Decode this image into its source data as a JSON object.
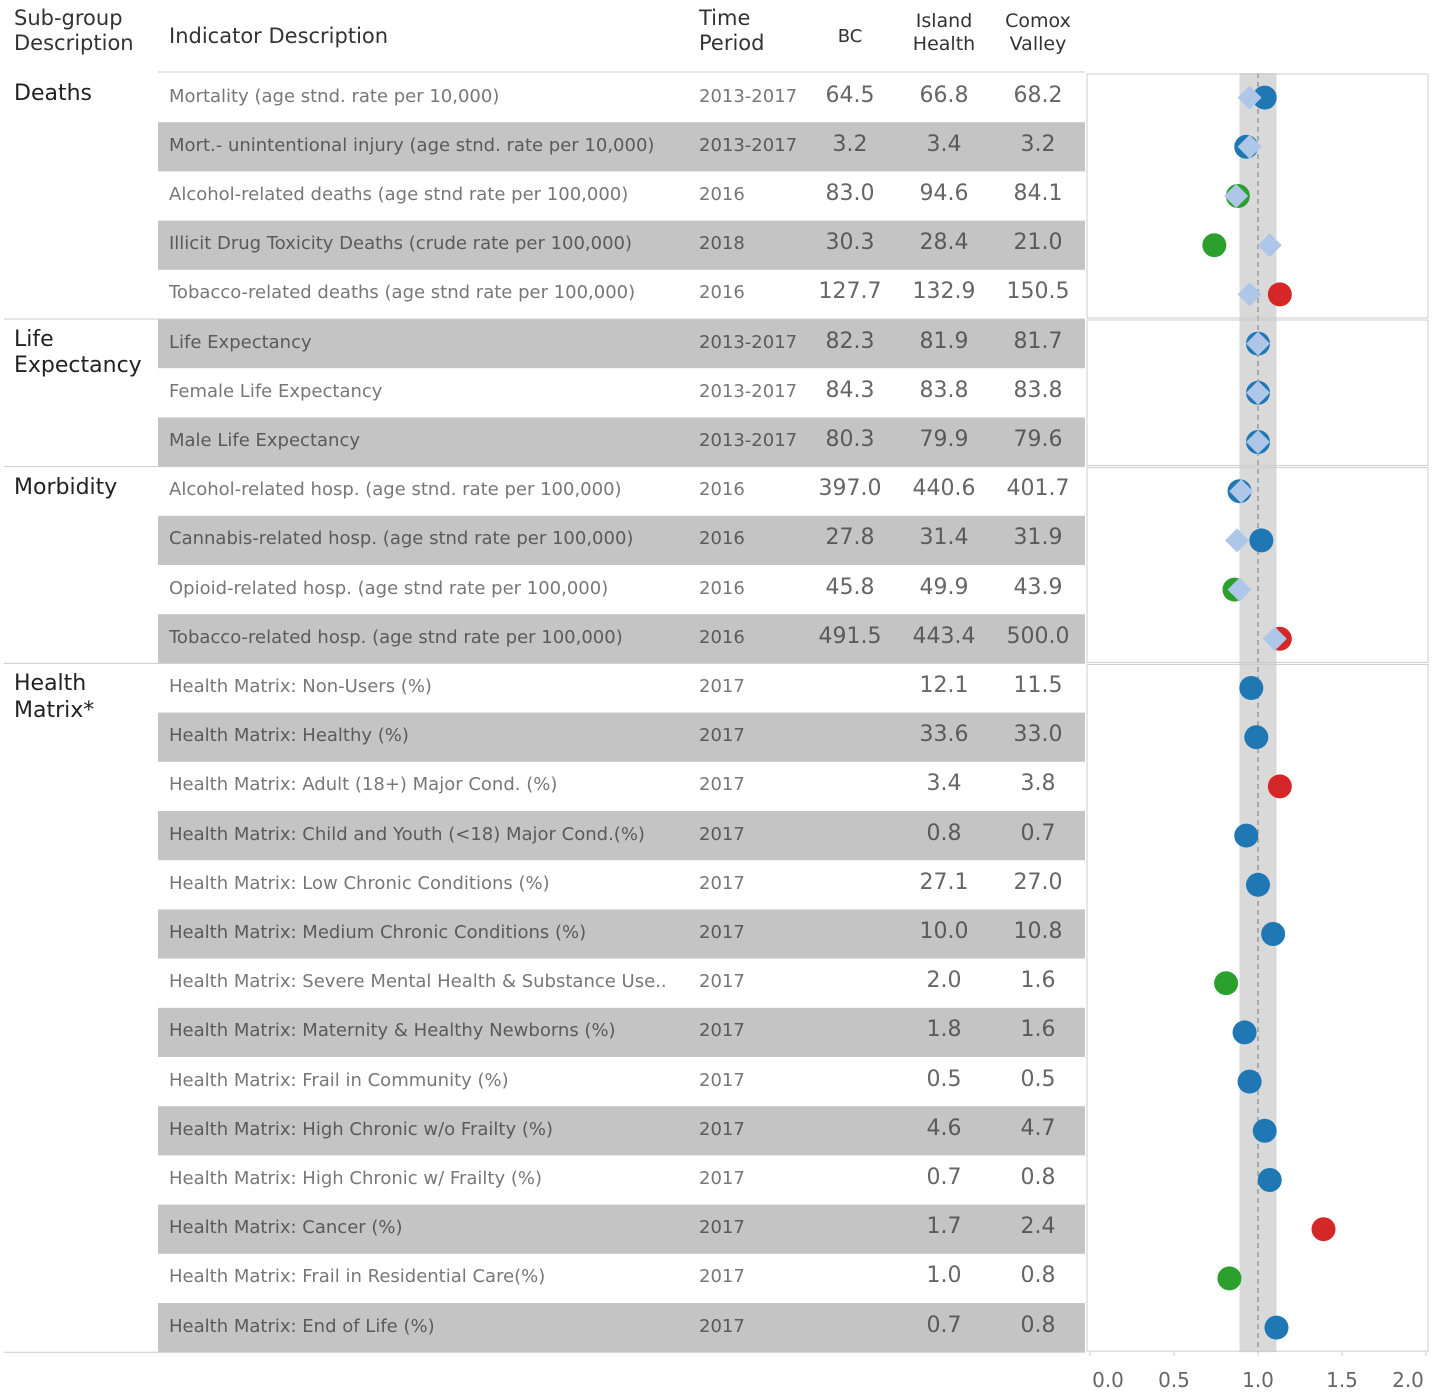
{
  "header": {
    "subgroup": "Sub-group Description",
    "indicator": "Indicator Description",
    "time": "Time Period",
    "bc": "BC",
    "island": "Island Health",
    "comox": "Comox Valley"
  },
  "axis": {
    "xlim": [
      0,
      2
    ],
    "xticks": [
      {
        "value": 0,
        "label": "0.0"
      },
      {
        "value": 0.5,
        "label": "0.5"
      },
      {
        "value": 1,
        "label": "1.0"
      },
      {
        "value": 1.5,
        "label": "1.5"
      },
      {
        "value": 2,
        "label": "2.0"
      }
    ],
    "reference": 1,
    "band": [
      0.89,
      1.11
    ]
  },
  "colors": {
    "blue": "#1f77b4",
    "green": "#2ca02c",
    "red": "#d62728",
    "diamond": "#aec7e8"
  },
  "groups": [
    {
      "name": "Deaths",
      "rows": [
        {
          "indicator": "Mortality (age stnd. rate per 10,000)",
          "period": "2013-2017",
          "bc": "64.5",
          "island": "66.8",
          "comox": "68.2",
          "ratio": 1.04,
          "color": "blue",
          "diamond": 0.95
        },
        {
          "indicator": "Mort.- unintentional injury (age stnd. rate per 10,000)",
          "period": "2013-2017",
          "bc": "3.2",
          "island": "3.4",
          "comox": "3.2",
          "ratio": 0.93,
          "color": "blue",
          "diamond": 0.95
        },
        {
          "indicator": "Alcohol-related deaths (age stnd rate per 100,000)",
          "period": "2016",
          "bc": "83.0",
          "island": "94.6",
          "comox": "84.1",
          "ratio": 0.88,
          "color": "green",
          "diamond": 0.87
        },
        {
          "indicator": "Illicit Drug Toxicity Deaths (crude rate per 100,000)",
          "period": "2018",
          "bc": "30.3",
          "island": "28.4",
          "comox": "21.0",
          "ratio": 0.74,
          "color": "green",
          "diamond": 1.07
        },
        {
          "indicator": "Tobacco-related deaths (age stnd rate per 100,000)",
          "period": "2016",
          "bc": "127.7",
          "island": "132.9",
          "comox": "150.5",
          "ratio": 1.13,
          "color": "red",
          "diamond": 0.95
        }
      ]
    },
    {
      "name": "Life Expectancy",
      "rows": [
        {
          "indicator": "Life Expectancy",
          "period": "2013-2017",
          "bc": "82.3",
          "island": "81.9",
          "comox": "81.7",
          "ratio": 1.0,
          "color": "blue",
          "diamond": 1.0
        },
        {
          "indicator": "Female Life Expectancy",
          "period": "2013-2017",
          "bc": "84.3",
          "island": "83.8",
          "comox": "83.8",
          "ratio": 1.0,
          "color": "blue",
          "diamond": 1.0
        },
        {
          "indicator": "Male Life Expectancy",
          "period": "2013-2017",
          "bc": "80.3",
          "island": "79.9",
          "comox": "79.6",
          "ratio": 1.0,
          "color": "blue",
          "diamond": 1.0
        }
      ]
    },
    {
      "name": "Morbidity",
      "rows": [
        {
          "indicator": "Alcohol-related hosp. (age stnd. rate per 100,000)",
          "period": "2016",
          "bc": "397.0",
          "island": "440.6",
          "comox": "401.7",
          "ratio": 0.89,
          "color": "blue",
          "diamond": 0.9
        },
        {
          "indicator": "Cannabis-related hosp. (age stnd rate per 100,000)",
          "period": "2016",
          "bc": "27.8",
          "island": "31.4",
          "comox": "31.9",
          "ratio": 1.02,
          "color": "blue",
          "diamond": 0.875
        },
        {
          "indicator": "Opioid-related hosp. (age stnd rate per 100,000)",
          "period": "2016",
          "bc": "45.8",
          "island": "49.9",
          "comox": "43.9",
          "ratio": 0.86,
          "color": "green",
          "diamond": 0.89
        },
        {
          "indicator": "Tobacco-related hosp. (age stnd rate per 100,000)",
          "period": "2016",
          "bc": "491.5",
          "island": "443.4",
          "comox": "500.0",
          "ratio": 1.13,
          "color": "red",
          "diamond": 1.1
        }
      ]
    },
    {
      "name": "Health Matrix*",
      "rows": [
        {
          "indicator": "Health Matrix: Non-Users (%)",
          "period": "2017",
          "bc": null,
          "island": "12.1",
          "comox": "11.5",
          "ratio": 0.96,
          "color": "blue",
          "diamond": null
        },
        {
          "indicator": "Health Matrix: Healthy  (%)",
          "period": "2017",
          "bc": null,
          "island": "33.6",
          "comox": "33.0",
          "ratio": 0.99,
          "color": "blue",
          "diamond": null
        },
        {
          "indicator": "Health Matrix: Adult (18+) Major Cond. (%)",
          "period": "2017",
          "bc": null,
          "island": "3.4",
          "comox": "3.8",
          "ratio": 1.13,
          "color": "red",
          "diamond": null
        },
        {
          "indicator": "Health Matrix: Child and Youth (<18) Major Cond.(%)",
          "period": "2017",
          "bc": null,
          "island": "0.8",
          "comox": "0.7",
          "ratio": 0.93,
          "color": "blue",
          "diamond": null
        },
        {
          "indicator": "Health Matrix: Low Chronic Conditions (%)",
          "period": "2017",
          "bc": null,
          "island": "27.1",
          "comox": "27.0",
          "ratio": 1.0,
          "color": "blue",
          "diamond": null
        },
        {
          "indicator": "Health Matrix: Medium Chronic Conditions (%)",
          "period": "2017",
          "bc": null,
          "island": "10.0",
          "comox": "10.8",
          "ratio": 1.09,
          "color": "blue",
          "diamond": null
        },
        {
          "indicator": "Health Matrix: Severe Mental Health & Substance Use..",
          "period": "2017",
          "bc": null,
          "island": "2.0",
          "comox": "1.6",
          "ratio": 0.81,
          "color": "green",
          "diamond": null
        },
        {
          "indicator": "Health Matrix: Maternity & Healthy Newborns (%)",
          "period": "2017",
          "bc": null,
          "island": "1.8",
          "comox": "1.6",
          "ratio": 0.92,
          "color": "blue",
          "diamond": null
        },
        {
          "indicator": "Health Matrix: Frail in Community (%)",
          "period": "2017",
          "bc": null,
          "island": "0.5",
          "comox": "0.5",
          "ratio": 0.95,
          "color": "blue",
          "diamond": null
        },
        {
          "indicator": "Health Matrix: High Chronic w/o Frailty (%)",
          "period": "2017",
          "bc": null,
          "island": "4.6",
          "comox": "4.7",
          "ratio": 1.04,
          "color": "blue",
          "diamond": null
        },
        {
          "indicator": "Health Matrix: High Chronic w/ Frailty (%)",
          "period": "2017",
          "bc": null,
          "island": "0.7",
          "comox": "0.8",
          "ratio": 1.07,
          "color": "blue",
          "diamond": null
        },
        {
          "indicator": "Health Matrix: Cancer (%)",
          "period": "2017",
          "bc": null,
          "island": "1.7",
          "comox": "2.4",
          "ratio": 1.39,
          "color": "red",
          "diamond": null
        },
        {
          "indicator": "Health Matrix: Frail in Residential Care(%)",
          "period": "2017",
          "bc": null,
          "island": "1.0",
          "comox": "0.8",
          "ratio": 0.83,
          "color": "green",
          "diamond": null
        },
        {
          "indicator": "Health Matrix: End of Life (%)",
          "period": "2017",
          "bc": null,
          "island": "0.7",
          "comox": "0.8",
          "ratio": 1.11,
          "color": "blue",
          "diamond": null
        }
      ]
    }
  ]
}
